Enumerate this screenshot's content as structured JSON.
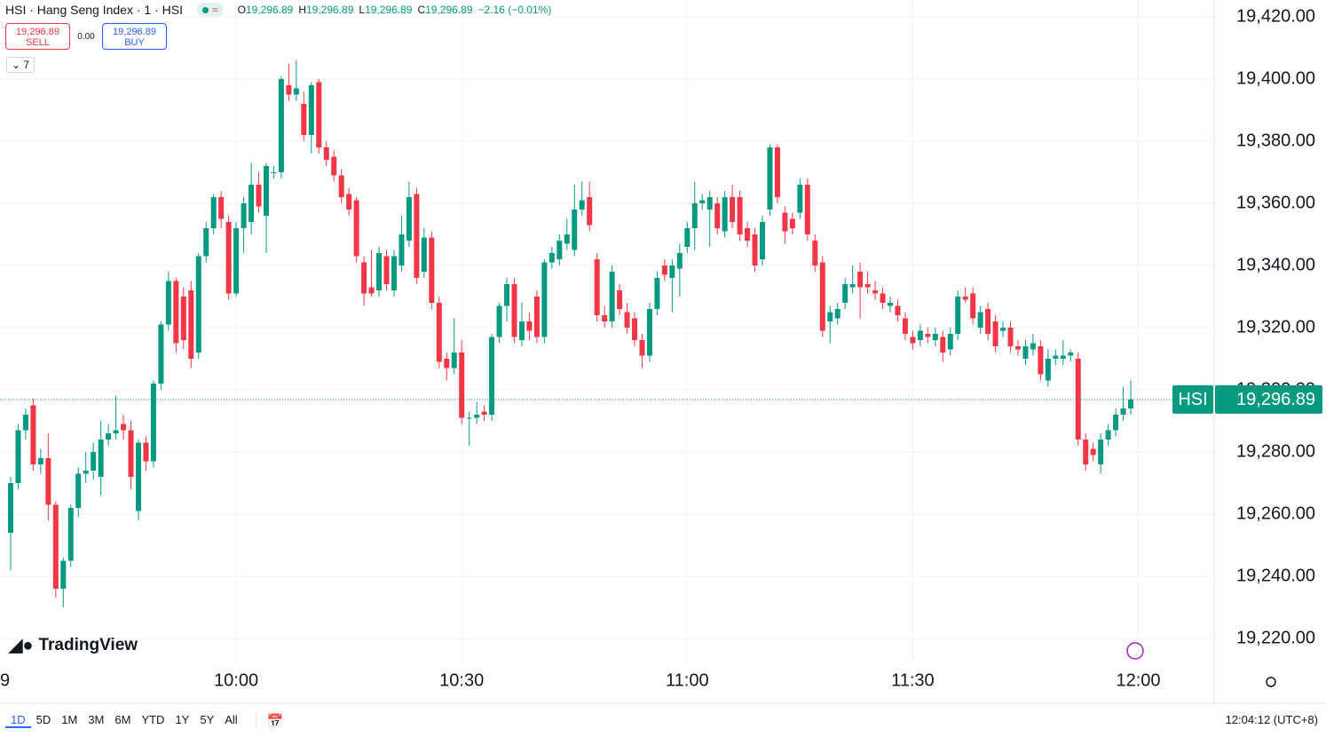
{
  "chart_data": {
    "type": "candlestick",
    "symbol": "HSI · Hang Seng Index · 1 · HSI",
    "legend": [
      {
        "key": "O",
        "value": "19,296.89"
      },
      {
        "key": "H",
        "value": "19,296.89"
      },
      {
        "key": "L",
        "value": "19,296.89"
      },
      {
        "key": "C",
        "value": "19,296.89"
      }
    ],
    "change": "−2.16 (−0.01%)",
    "sell": {
      "price": "19,296.89",
      "label": "SELL"
    },
    "spread": "0.00",
    "buy": {
      "price": "19,296.89",
      "label": "BUY"
    },
    "indicators": "7",
    "logo": "TradingView",
    "up_color": "#089981",
    "down_color": "#f23645",
    "last_price": {
      "value": 19296.89,
      "label": "19,296.89",
      "tag": "HSI"
    },
    "ylim": [
      19220,
      19420
    ],
    "yticks": [
      {
        "value": 19220,
        "label": "19,220.00"
      },
      {
        "value": 19240,
        "label": "19,240.00"
      },
      {
        "value": 19260,
        "label": "19,260.00"
      },
      {
        "value": 19280,
        "label": "19,280.00"
      },
      {
        "value": 19300,
        "label": "19,300.00"
      },
      {
        "value": 19320,
        "label": "19,320.00"
      },
      {
        "value": 19340,
        "label": "19,340.00"
      },
      {
        "value": 19360,
        "label": "19,360.00"
      },
      {
        "value": 19380,
        "label": "19,380.00"
      },
      {
        "value": 19400,
        "label": "19,400.00"
      },
      {
        "value": 19420,
        "label": "19,420.00"
      }
    ],
    "xticks": [
      {
        "value": -2,
        "label": "9"
      },
      {
        "value": 30,
        "label": "10:00"
      },
      {
        "value": 60,
        "label": "10:30"
      },
      {
        "value": 90,
        "label": "11:00"
      },
      {
        "value": 120,
        "label": "11:30"
      },
      {
        "value": 150,
        "label": "12:00"
      }
    ],
    "grid": true,
    "ohlc": [
      [
        19254,
        19272,
        19242,
        19270
      ],
      [
        19270,
        19289,
        19268,
        19287
      ],
      [
        19287,
        19294,
        19284,
        19292
      ],
      [
        19295,
        19297,
        19274,
        19276
      ],
      [
        19276,
        19281,
        19273,
        19278
      ],
      [
        19278,
        19286,
        19258,
        19263
      ],
      [
        19263,
        19264,
        19233,
        19236
      ],
      [
        19236,
        19246,
        19230,
        19245
      ],
      [
        19245,
        19263,
        19243,
        19262
      ],
      [
        19262,
        19275,
        19259,
        19273
      ],
      [
        19273,
        19280,
        19270,
        19274
      ],
      [
        19274,
        19283,
        19271,
        19280
      ],
      [
        19272,
        19290,
        19266,
        19284
      ],
      [
        19284,
        19289,
        19282,
        19286
      ],
      [
        19286,
        19298,
        19284,
        19287
      ],
      [
        19289,
        19292,
        19284,
        19287
      ],
      [
        19287,
        19290,
        19268,
        19272
      ],
      [
        19261,
        19284,
        19258,
        19283
      ],
      [
        19283,
        19285,
        19274,
        19277
      ],
      [
        19277,
        19303,
        19275,
        19302
      ],
      [
        19302,
        19322,
        19300,
        19321
      ],
      [
        19321,
        19338,
        19319,
        19335
      ],
      [
        19335,
        19336,
        19312,
        19315
      ],
      [
        19330,
        19333,
        19313,
        19316
      ],
      [
        19332,
        19335,
        19307,
        19310
      ],
      [
        19312,
        19344,
        19310,
        19343
      ],
      [
        19343,
        19354,
        19341,
        19352
      ],
      [
        19352,
        19363,
        19350,
        19362
      ],
      [
        19362,
        19364,
        19352,
        19355
      ],
      [
        19354,
        19356,
        19329,
        19331
      ],
      [
        19331,
        19354,
        19330,
        19352
      ],
      [
        19352,
        19362,
        19344,
        19360
      ],
      [
        19354,
        19373,
        19350,
        19366
      ],
      [
        19366,
        19370,
        19357,
        19359
      ],
      [
        19356,
        19373,
        19344,
        19372
      ],
      [
        19370,
        19372,
        19368,
        19370
      ],
      [
        19370,
        19401,
        19368,
        19400
      ],
      [
        19398,
        19405,
        19393,
        19395
      ],
      [
        19395,
        19406,
        19393,
        19397
      ],
      [
        19392,
        19396,
        19380,
        19382
      ],
      [
        19382,
        19399,
        19376,
        19398
      ],
      [
        19399,
        19400,
        19376,
        19378
      ],
      [
        19378,
        19380,
        19372,
        19374
      ],
      [
        19375,
        19377,
        19367,
        19369
      ],
      [
        19369,
        19371,
        19360,
        19362
      ],
      [
        19363,
        19365,
        19356,
        19358
      ],
      [
        19361,
        19362,
        19341,
        19343
      ],
      [
        19341,
        19343,
        19327,
        19331
      ],
      [
        19333,
        19345,
        19330,
        19331
      ],
      [
        19332,
        19346,
        19330,
        19344
      ],
      [
        19343,
        19345,
        19332,
        19334
      ],
      [
        19332,
        19345,
        19330,
        19343
      ],
      [
        19340,
        19356,
        19338,
        19350
      ],
      [
        19348,
        19367,
        19346,
        19362
      ],
      [
        19363,
        19365,
        19334,
        19336
      ],
      [
        19338,
        19352,
        19336,
        19349
      ],
      [
        19349,
        19351,
        19326,
        19328
      ],
      [
        19328,
        19330,
        19307,
        19309
      ],
      [
        19310,
        19312,
        19303,
        19307
      ],
      [
        19307,
        19323,
        19305,
        19312
      ],
      [
        19312,
        19316,
        19289,
        19291
      ],
      [
        19291,
        19293,
        19282,
        19291
      ],
      [
        19291,
        19296,
        19289,
        19292
      ],
      [
        19293,
        19295,
        19290,
        19292
      ],
      [
        19292,
        19318,
        19290,
        19317
      ],
      [
        19317,
        19328,
        19315,
        19327
      ],
      [
        19327,
        19336,
        19322,
        19334
      ],
      [
        19334,
        19336,
        19315,
        19317
      ],
      [
        19316,
        19328,
        19314,
        19322
      ],
      [
        19322,
        19325,
        19316,
        19319
      ],
      [
        19330,
        19332,
        19315,
        19317
      ],
      [
        19317,
        19342,
        19315,
        19341
      ],
      [
        19341,
        19346,
        19339,
        19344
      ],
      [
        19342,
        19350,
        19340,
        19348
      ],
      [
        19347,
        19355,
        19345,
        19350
      ],
      [
        19345,
        19366,
        19343,
        19358
      ],
      [
        19358,
        19367,
        19356,
        19361
      ],
      [
        19362,
        19367,
        19351,
        19353
      ],
      [
        19342,
        19344,
        19322,
        19324
      ],
      [
        19324,
        19327,
        19320,
        19322
      ],
      [
        19322,
        19340,
        19320,
        19338
      ],
      [
        19332,
        19334,
        19324,
        19326
      ],
      [
        19325,
        19328,
        19318,
        19320
      ],
      [
        19323,
        19325,
        19314,
        19316
      ],
      [
        19316,
        19318,
        19307,
        19311
      ],
      [
        19311,
        19328,
        19309,
        19326
      ],
      [
        19326,
        19338,
        19324,
        19336
      ],
      [
        19340,
        19342,
        19335,
        19337
      ],
      [
        19336,
        19342,
        19325,
        19340
      ],
      [
        19339,
        19347,
        19330,
        19344
      ],
      [
        19346,
        19354,
        19344,
        19352
      ],
      [
        19352,
        19367,
        19345,
        19360
      ],
      [
        19360,
        19363,
        19358,
        19361
      ],
      [
        19358,
        19364,
        19346,
        19362
      ],
      [
        19360,
        19362,
        19350,
        19352
      ],
      [
        19351,
        19364,
        19349,
        19362
      ],
      [
        19362,
        19366,
        19352,
        19354
      ],
      [
        19362,
        19364,
        19348,
        19350
      ],
      [
        19352,
        19354,
        19346,
        19348
      ],
      [
        19350,
        19352,
        19338,
        19340
      ],
      [
        19342,
        19356,
        19340,
        19354
      ],
      [
        19358,
        19379,
        19356,
        19378
      ],
      [
        19378,
        19379,
        19360,
        19362
      ],
      [
        19357,
        19359,
        19347,
        19351
      ],
      [
        19355,
        19357,
        19350,
        19352
      ],
      [
        19357,
        19368,
        19355,
        19366
      ],
      [
        19366,
        19368,
        19348,
        19350
      ],
      [
        19348,
        19350,
        19338,
        19340
      ],
      [
        19341,
        19343,
        19317,
        19319
      ],
      [
        19322,
        19327,
        19315,
        19325
      ],
      [
        19323,
        19328,
        19321,
        19326
      ],
      [
        19328,
        19336,
        19326,
        19334
      ],
      [
        19333,
        19340,
        19331,
        19334
      ],
      [
        19338,
        19341,
        19323,
        19333
      ],
      [
        19334,
        19338,
        19331,
        19333
      ],
      [
        19332,
        19335,
        19329,
        19331
      ],
      [
        19331,
        19333,
        19326,
        19328
      ],
      [
        19327,
        19330,
        19325,
        19328
      ],
      [
        19327,
        19329,
        19322,
        19324
      ],
      [
        19323,
        19325,
        19316,
        19318
      ],
      [
        19317,
        19319,
        19313,
        19315
      ],
      [
        19316,
        19321,
        19314,
        19319
      ],
      [
        19318,
        19320,
        19315,
        19317
      ],
      [
        19316,
        19320,
        19314,
        19318
      ],
      [
        19317,
        19319,
        19309,
        19312
      ],
      [
        19313,
        19320,
        19311,
        19318
      ],
      [
        19318,
        19332,
        19316,
        19330
      ],
      [
        19330,
        19333,
        19328,
        19329
      ],
      [
        19331,
        19333,
        19321,
        19323
      ],
      [
        19320,
        19327,
        19318,
        19325
      ],
      [
        19326,
        19328,
        19316,
        19318
      ],
      [
        19322,
        19324,
        19312,
        19314
      ],
      [
        19319,
        19322,
        19317,
        19320
      ],
      [
        19320,
        19322,
        19312,
        19314
      ],
      [
        19314,
        19316,
        19311,
        19313
      ],
      [
        19310,
        19316,
        19308,
        19314
      ],
      [
        19313,
        19318,
        19311,
        19315
      ],
      [
        19314,
        19316,
        19303,
        19305
      ],
      [
        19303,
        19313,
        19301,
        19310
      ],
      [
        19310,
        19313,
        19308,
        19311
      ],
      [
        19310,
        19316,
        19308,
        19311
      ],
      [
        19311,
        19313,
        19309,
        19312
      ],
      [
        19310,
        19312,
        19282,
        19284
      ],
      [
        19284,
        19286,
        19274,
        19276
      ],
      [
        19281,
        19283,
        19277,
        19279
      ],
      [
        19276,
        19286,
        19273,
        19284
      ],
      [
        19284,
        19289,
        19282,
        19287
      ],
      [
        19287,
        19294,
        19285,
        19292
      ],
      [
        19292,
        19301,
        19290,
        19294
      ],
      [
        19294,
        19303,
        19292,
        19296.89
      ]
    ],
    "ranges": [
      "1D",
      "5D",
      "1M",
      "3M",
      "6M",
      "YTD",
      "1Y",
      "5Y",
      "All"
    ],
    "active_range": 0,
    "clock": "12:04:12 (UTC+8)"
  }
}
